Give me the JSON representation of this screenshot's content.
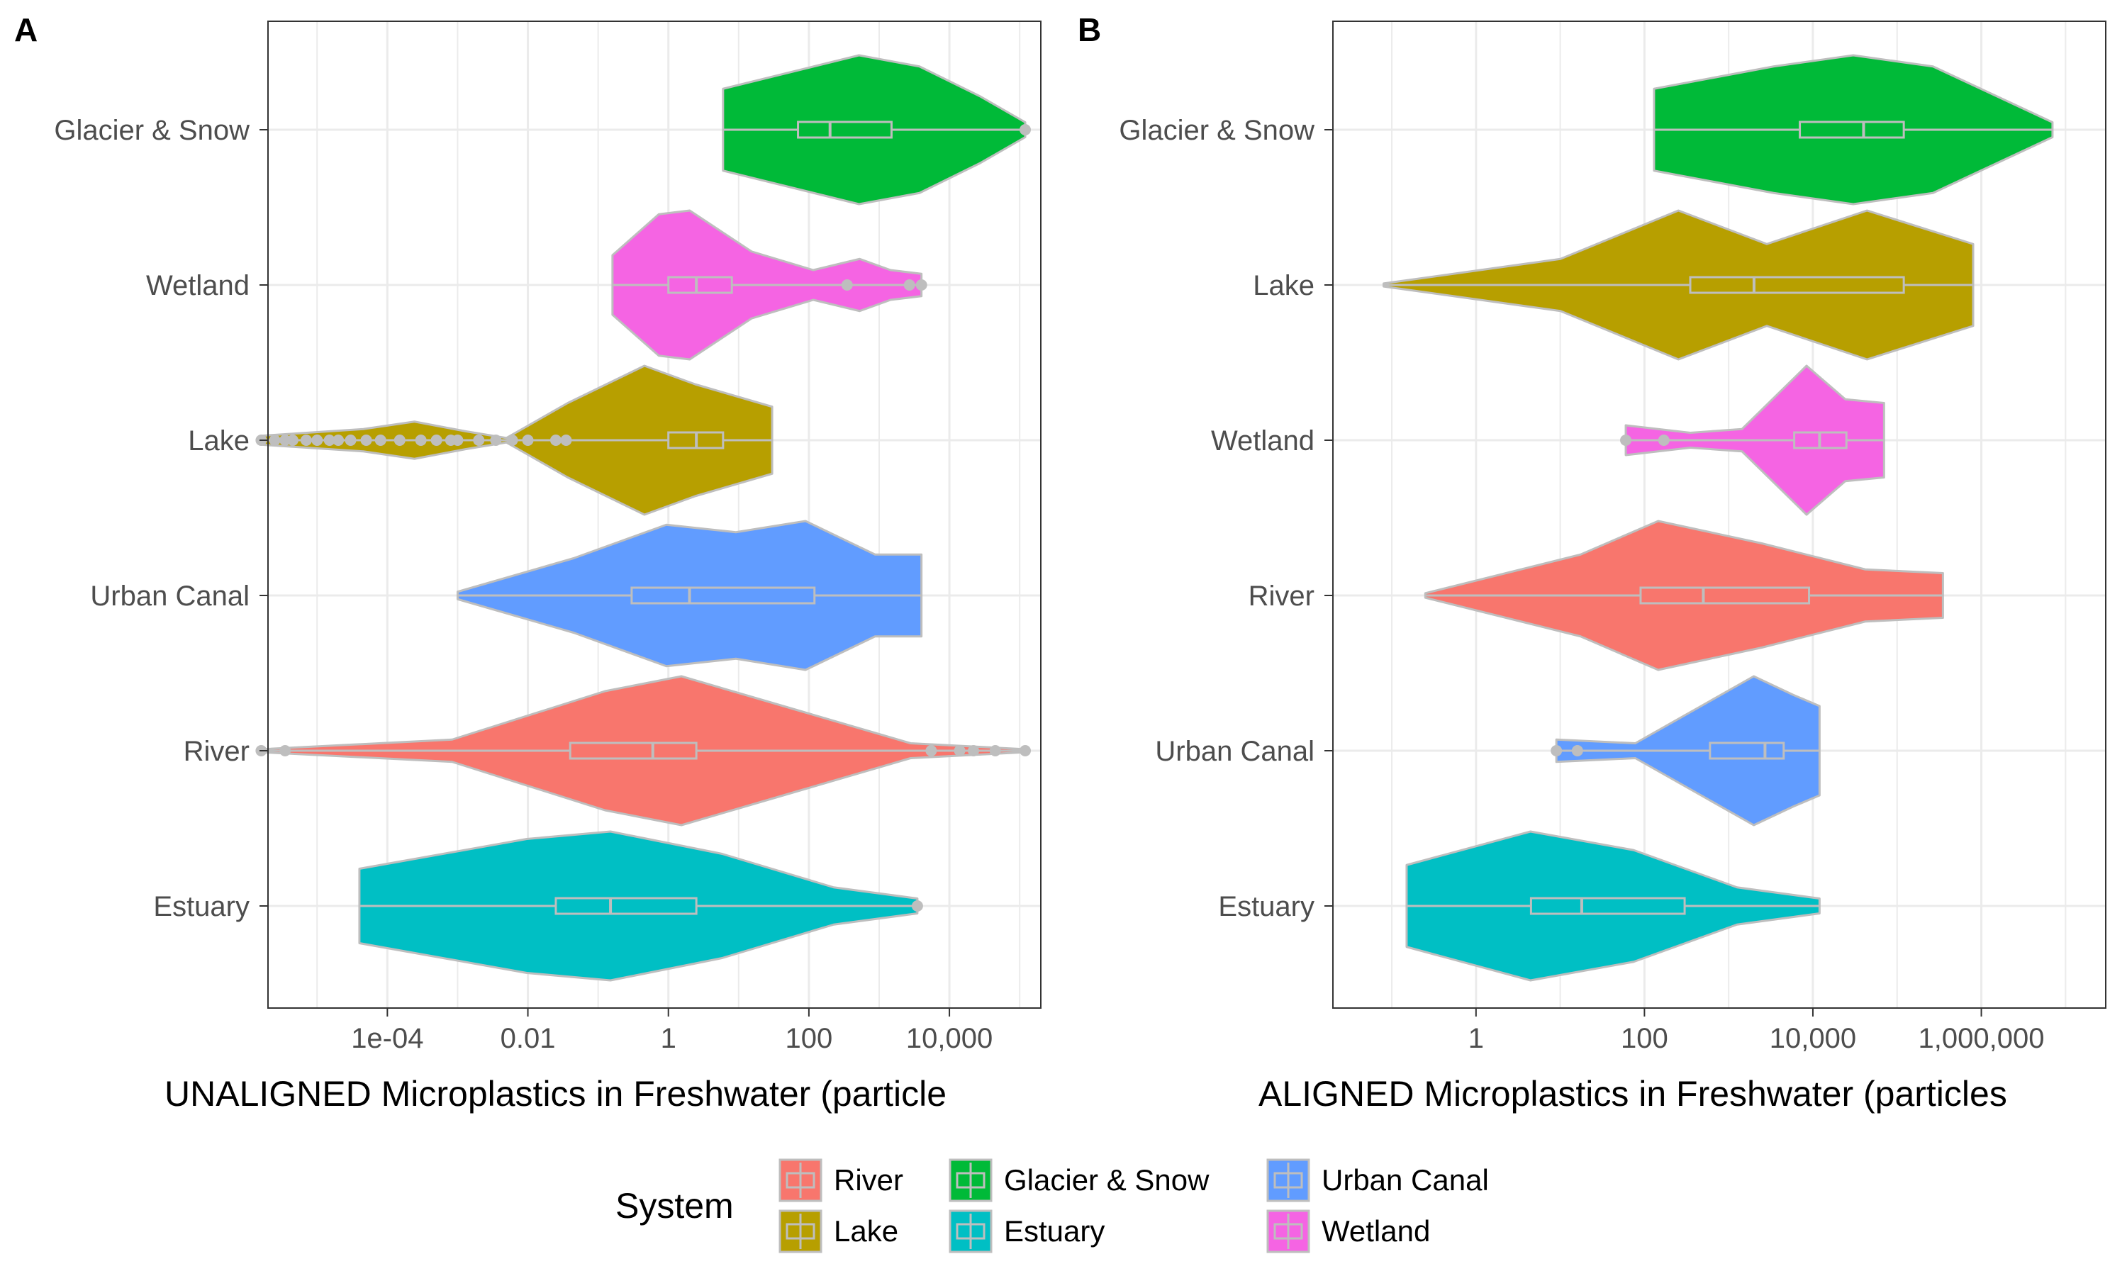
{
  "colors": {
    "River": "#F8766D",
    "Lake": "#B79F00",
    "Glacier & Snow": "#00BA38",
    "Estuary": "#00BFC4",
    "Urban Canal": "#619CFF",
    "Wetland": "#F564E3",
    "outline": "#BEBEBE",
    "grid": "#EBEBEB"
  },
  "chart_data": [
    {
      "panel": "A",
      "type": "violin",
      "orientation": "horizontal",
      "x_scale": "log10",
      "xlabel": "UNALIGNED Microplastics in Freshwater (particle",
      "xlim": [
        2e-06,
        200000.0
      ],
      "x_ticks": [
        0.0001,
        0.01,
        1,
        100,
        10000
      ],
      "x_tick_labels": [
        "1e-04",
        "0.01",
        "1",
        "100",
        "10,000"
      ],
      "categories": [
        "Glacier & Snow",
        "Wetland",
        "Lake",
        "Urban Canal",
        "River",
        "Estuary"
      ],
      "series": [
        {
          "name": "Glacier & Snow",
          "min": 6,
          "q1": 70,
          "median": 200,
          "q3": 1500,
          "max": 120000,
          "outliers": [
            120000
          ],
          "density": [
            [
              0,
              0.55
            ],
            [
              0.3,
              0.85
            ],
            [
              0.45,
              1
            ],
            [
              0.65,
              0.85
            ],
            [
              0.85,
              0.45
            ],
            [
              1,
              0.1
            ]
          ]
        },
        {
          "name": "Wetland",
          "min": 0.16,
          "q1": 1,
          "median": 2.5,
          "q3": 8,
          "max": 4000,
          "outliers": [
            350,
            2700,
            4000
          ],
          "density": [
            [
              0,
              0.4
            ],
            [
              0.15,
              0.95
            ],
            [
              0.25,
              1
            ],
            [
              0.45,
              0.45
            ],
            [
              0.65,
              0.2
            ],
            [
              0.8,
              0.35
            ],
            [
              0.9,
              0.2
            ],
            [
              1,
              0.15
            ]
          ]
        },
        {
          "name": "Lake",
          "min": 1.6e-06,
          "q1": 1,
          "median": 2.5,
          "q3": 6,
          "max": 30,
          "outliers": [
            1.6e-06,
            2.5e-06,
            3.5e-06,
            4.5e-06,
            7e-06,
            1e-05,
            1.5e-05,
            2e-05,
            3e-05,
            5e-05,
            8e-05,
            0.00015,
            0.0003,
            0.0005,
            0.0008,
            0.001,
            0.002,
            0.0035,
            0.006,
            0.01,
            0.025,
            0.035
          ],
          "density": [
            [
              0,
              0.06
            ],
            [
              0.2,
              0.15
            ],
            [
              0.3,
              0.25
            ],
            [
              0.4,
              0.12
            ],
            [
              0.48,
              0.03
            ],
            [
              0.6,
              0.5
            ],
            [
              0.75,
              1
            ],
            [
              0.85,
              0.75
            ],
            [
              1,
              0.45
            ]
          ]
        }
      ]
    },
    {
      "panel": "A-cont",
      "categories_cont": [
        "Urban Canal",
        "River",
        "Estuary"
      ],
      "series": [
        {
          "name": "Urban Canal",
          "min": 0.001,
          "q1": 0.3,
          "median": 2,
          "q3": 120,
          "max": 4000,
          "density": [
            [
              0,
              0.05
            ],
            [
              0.25,
              0.5
            ],
            [
              0.45,
              0.95
            ],
            [
              0.6,
              0.85
            ],
            [
              0.75,
              1
            ],
            [
              0.9,
              0.55
            ],
            [
              1,
              0.55
            ]
          ]
        },
        {
          "name": "River",
          "min": 1.6e-06,
          "q1": 0.04,
          "median": 0.6,
          "q3": 2.5,
          "max": 120000,
          "outliers": [
            1.6e-06,
            3.5e-06,
            5500,
            14000,
            22000,
            45000,
            120000
          ],
          "density": [
            [
              0,
              0.02
            ],
            [
              0.25,
              0.15
            ],
            [
              0.45,
              0.8
            ],
            [
              0.55,
              1
            ],
            [
              0.7,
              0.55
            ],
            [
              0.85,
              0.1
            ],
            [
              1,
              0.02
            ]
          ]
        },
        {
          "name": "Estuary",
          "min": 4e-05,
          "q1": 0.025,
          "median": 0.15,
          "q3": 2.5,
          "max": 3500,
          "outliers": [
            3500
          ],
          "density": [
            [
              0,
              0.5
            ],
            [
              0.3,
              0.9
            ],
            [
              0.45,
              1
            ],
            [
              0.65,
              0.7
            ],
            [
              0.85,
              0.25
            ],
            [
              1,
              0.1
            ]
          ]
        }
      ]
    },
    {
      "panel": "B",
      "type": "violin",
      "orientation": "horizontal",
      "x_scale": "log10",
      "xlabel": "ALIGNED Microplastics in Freshwater (particles",
      "xlim": [
        0.02,
        30000000.0
      ],
      "x_ticks": [
        1,
        100,
        10000,
        1000000
      ],
      "x_tick_labels": [
        "1",
        "100",
        "10,000",
        "1,000,000"
      ],
      "categories": [
        "Glacier & Snow",
        "Lake",
        "Wetland",
        "River",
        "Urban Canal",
        "Estuary"
      ],
      "series": [
        {
          "name": "Glacier & Snow",
          "min": 130,
          "q1": 7000,
          "median": 40000,
          "q3": 120000,
          "max": 7000000,
          "density": [
            [
              0,
              0.55
            ],
            [
              0.3,
              0.85
            ],
            [
              0.5,
              1
            ],
            [
              0.7,
              0.85
            ],
            [
              0.9,
              0.35
            ],
            [
              1,
              0.1
            ]
          ]
        },
        {
          "name": "Lake",
          "min": 0.08,
          "q1": 350,
          "median": 2000,
          "q3": 120000,
          "max": 800000,
          "density": [
            [
              0,
              0.02
            ],
            [
              0.3,
              0.35
            ],
            [
              0.5,
              1
            ],
            [
              0.65,
              0.55
            ],
            [
              0.82,
              1
            ],
            [
              1,
              0.55
            ]
          ]
        },
        {
          "name": "Wetland",
          "min": 60,
          "q1": 6000,
          "median": 12000,
          "q3": 25000,
          "max": 70000,
          "outliers": [
            60,
            170
          ],
          "density": [
            [
              0,
              0.2
            ],
            [
              0.25,
              0.1
            ],
            [
              0.45,
              0.15
            ],
            [
              0.7,
              1
            ],
            [
              0.85,
              0.55
            ],
            [
              1,
              0.5
            ]
          ]
        },
        {
          "name": "River",
          "min": 0.25,
          "q1": 90,
          "median": 500,
          "q3": 9000,
          "max": 350000,
          "density": [
            [
              0,
              0.03
            ],
            [
              0.3,
              0.55
            ],
            [
              0.45,
              1
            ],
            [
              0.65,
              0.7
            ],
            [
              0.85,
              0.35
            ],
            [
              1,
              0.3
            ]
          ]
        },
        {
          "name": "Urban Canal",
          "min": 9,
          "q1": 600,
          "median": 2700,
          "q3": 4500,
          "max": 12000,
          "outliers": [
            9,
            16
          ],
          "density": [
            [
              0,
              0.15
            ],
            [
              0.3,
              0.1
            ],
            [
              0.55,
              0.6
            ],
            [
              0.75,
              1
            ],
            [
              0.9,
              0.75
            ],
            [
              1,
              0.6
            ]
          ]
        },
        {
          "name": "Estuary",
          "min": 0.15,
          "q1": 4.5,
          "median": 18,
          "q3": 300,
          "max": 12000,
          "density": [
            [
              0,
              0.55
            ],
            [
              0.3,
              1
            ],
            [
              0.55,
              0.75
            ],
            [
              0.8,
              0.25
            ],
            [
              1,
              0.1
            ]
          ]
        }
      ]
    }
  ],
  "legend": {
    "title": "System",
    "items": [
      "River",
      "Lake",
      "Glacier & Snow",
      "Estuary",
      "Urban Canal",
      "Wetland"
    ]
  }
}
